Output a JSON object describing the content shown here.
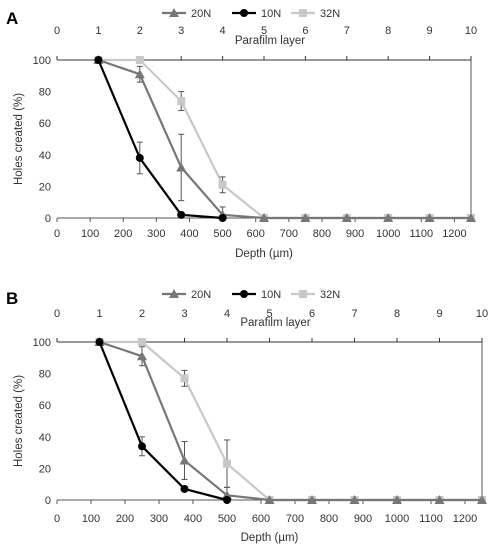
{
  "chart_data": [
    {
      "type": "line",
      "panel_label": "A",
      "x_bottom": [
        125,
        250,
        375,
        500,
        625,
        750,
        875,
        1000,
        1125,
        1250
      ],
      "xlabel": "Depth (µm)",
      "xlim": [
        0,
        1250
      ],
      "xticks": [
        "0",
        "100",
        "200",
        "300",
        "400",
        "500",
        "600",
        "700",
        "800",
        "900",
        "1000",
        "1100",
        "1200"
      ],
      "xlabel_top": "Parafilm layer",
      "xlim_top": [
        0,
        10
      ],
      "xticks_top": [
        "0",
        "1",
        "2",
        "3",
        "4",
        "5",
        "6",
        "7",
        "8",
        "9",
        "10"
      ],
      "ylabel": "Holes created (%)",
      "ylim": [
        0,
        100
      ],
      "yticks": [
        "0",
        "20",
        "40",
        "60",
        "80",
        "100"
      ],
      "legend_position": "top-center",
      "series": [
        {
          "name": "20N",
          "color": "#777777",
          "marker": "triangle",
          "values": [
            100,
            91,
            32,
            2,
            0,
            0,
            0,
            0,
            0,
            0
          ],
          "error": [
            0,
            5,
            21,
            5,
            0,
            0,
            0,
            0,
            0,
            0
          ]
        },
        {
          "name": "10N",
          "color": "#000000",
          "marker": "circle",
          "values": [
            100,
            38,
            2,
            0,
            null,
            null,
            null,
            null,
            null,
            null
          ],
          "error": [
            0,
            10,
            0,
            0,
            0,
            0,
            0,
            0,
            0,
            0
          ]
        },
        {
          "name": "32N",
          "color": "#c8c8c8",
          "marker": "square",
          "values": [
            100,
            100,
            74,
            21,
            0,
            0,
            0,
            0,
            0,
            0
          ],
          "error": [
            0,
            0,
            6,
            5,
            0,
            0,
            0,
            0,
            0,
            0
          ]
        }
      ]
    },
    {
      "type": "line",
      "panel_label": "B",
      "x_bottom": [
        125,
        250,
        375,
        500,
        625,
        750,
        875,
        1000,
        1125,
        1250
      ],
      "xlabel": "Depth (µm)",
      "xlim": [
        0,
        1250
      ],
      "xticks": [
        "0",
        "100",
        "200",
        "300",
        "400",
        "500",
        "600",
        "700",
        "800",
        "900",
        "1000",
        "1100",
        "1200"
      ],
      "xlabel_top": "Parafilm layer",
      "xlim_top": [
        0,
        10
      ],
      "xticks_top": [
        "0",
        "1",
        "2",
        "3",
        "4",
        "5",
        "6",
        "7",
        "8",
        "9",
        "10"
      ],
      "ylabel": "Holes created (%)",
      "ylim": [
        0,
        100
      ],
      "yticks": [
        "0",
        "20",
        "40",
        "60",
        "80",
        "100"
      ],
      "legend_position": "top-center",
      "series": [
        {
          "name": "20N",
          "color": "#777777",
          "marker": "triangle",
          "values": [
            100,
            91,
            25,
            3,
            0,
            0,
            0,
            0,
            0,
            0
          ],
          "error": [
            0,
            6,
            12,
            5,
            0,
            0,
            0,
            0,
            0,
            0
          ]
        },
        {
          "name": "10N",
          "color": "#000000",
          "marker": "circle",
          "values": [
            100,
            34,
            7,
            0,
            null,
            null,
            null,
            null,
            null,
            null
          ],
          "error": [
            0,
            6,
            0,
            0,
            0,
            0,
            0,
            0,
            0,
            0
          ]
        },
        {
          "name": "32N",
          "color": "#c8c8c8",
          "marker": "square",
          "values": [
            100,
            100,
            77,
            23,
            0,
            0,
            0,
            0,
            0,
            0
          ],
          "error": [
            0,
            0,
            5,
            15,
            0,
            0,
            0,
            0,
            0,
            0
          ]
        }
      ]
    }
  ]
}
